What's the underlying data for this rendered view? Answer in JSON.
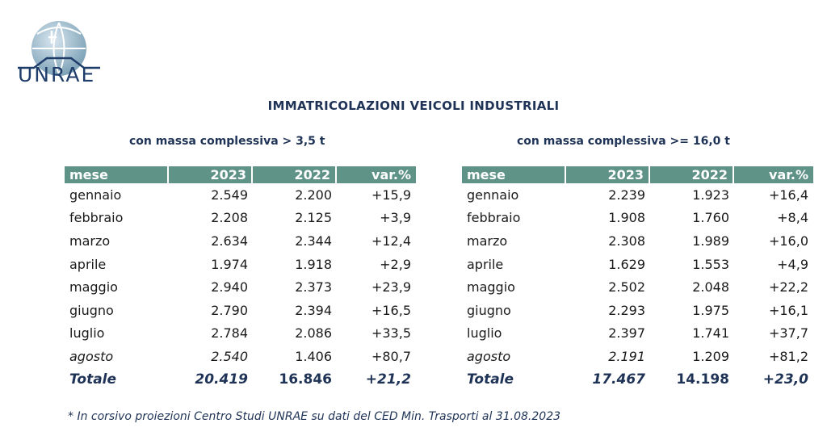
{
  "logo": {
    "text": "UNRAE"
  },
  "title": "IMMATRICOLAZIONI VEICOLI INDUSTRIALI",
  "tables": [
    {
      "subtitle": "con massa complessiva > 3,5 t",
      "headers": [
        "mese",
        "2023",
        "2022",
        "var.%"
      ],
      "rows": [
        [
          "gennaio",
          "2.549",
          "2.200",
          "+15,9"
        ],
        [
          "febbraio",
          "2.208",
          "2.125",
          "+3,9"
        ],
        [
          "marzo",
          "2.634",
          "2.344",
          "+12,4"
        ],
        [
          "aprile",
          "1.974",
          "1.918",
          "+2,9"
        ],
        [
          "maggio",
          "2.940",
          "2.373",
          "+23,9"
        ],
        [
          "giugno",
          "2.790",
          "2.394",
          "+16,5"
        ],
        [
          "luglio",
          "2.784",
          "2.086",
          "+33,5"
        ],
        [
          "agosto",
          "2.540",
          "1.406",
          "+80,7"
        ]
      ],
      "total": [
        "Totale",
        "20.419",
        "16.846",
        "+21,2"
      ]
    },
    {
      "subtitle": "con massa complessiva >= 16,0 t",
      "headers": [
        "mese",
        "2023",
        "2022",
        "var.%"
      ],
      "rows": [
        [
          "gennaio",
          "2.239",
          "1.923",
          "+16,4"
        ],
        [
          "febbraio",
          "1.908",
          "1.760",
          "+8,4"
        ],
        [
          "marzo",
          "2.308",
          "1.989",
          "+16,0"
        ],
        [
          "aprile",
          "1.629",
          "1.553",
          "+4,9"
        ],
        [
          "maggio",
          "2.502",
          "2.048",
          "+22,2"
        ],
        [
          "giugno",
          "2.293",
          "1.975",
          "+16,1"
        ],
        [
          "luglio",
          "2.397",
          "1.741",
          "+37,7"
        ],
        [
          "agosto",
          "2.191",
          "1.209",
          "+81,2"
        ]
      ],
      "total": [
        "Totale",
        "17.467",
        "14.198",
        "+23,0"
      ]
    }
  ],
  "footnote": "* In corsivo proiezioni Centro Studi UNRAE su dati del CED Min. Trasporti al 31.08.2023"
}
